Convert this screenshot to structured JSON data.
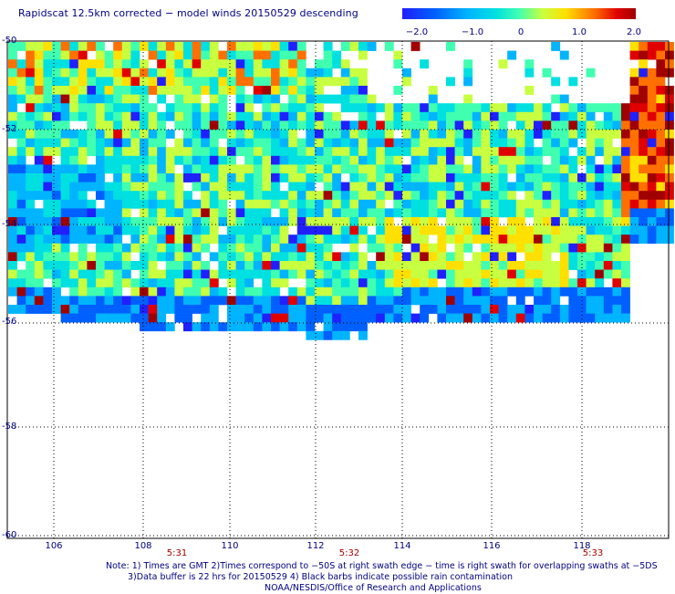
{
  "title": "Rapidscat 12.5km corrected − model winds 20150529 descending",
  "colorbar": {
    "ticks": [
      "−2.0",
      "−1.0",
      "0",
      "1.0",
      "2.0"
    ],
    "tick_values": [
      -2.0,
      -1.0,
      0.0,
      1.0,
      2.0
    ],
    "colors": [
      "#2020ff",
      "#0060ff",
      "#00b4ff",
      "#00e0e0",
      "#40ffb0",
      "#c8ff40",
      "#ffe000",
      "#ff7000",
      "#e00000",
      "#a00000"
    ]
  },
  "map": {
    "lat_labels": [
      "-50",
      "-52",
      "-54",
      "-56",
      "-58",
      "-60"
    ],
    "lat_values": [
      -50,
      -52,
      -54,
      -56,
      -58,
      -60
    ],
    "lon_labels": [
      "106",
      "108",
      "110",
      "112",
      "114",
      "116",
      "118"
    ],
    "lon_values": [
      106,
      108,
      110,
      112,
      114,
      116,
      118
    ],
    "time_labels": [
      "5:31",
      "5:32",
      "5:33"
    ],
    "time_lon": [
      108.7,
      112.7,
      118.3
    ],
    "lon_range": [
      105.1,
      119.8
    ],
    "lat_range": [
      -50,
      -60
    ]
  },
  "notes": {
    "line1": "Note: 1) Times are GMT 2)Times correspond to −50S at right swath edge − time is right swath for overlapping swaths at −5DS",
    "line2": "3)Data buffer is 22 hrs for 20150529 4) Black barbs indicate possible rain contamination",
    "line3": "NOAA/NESDIS/Office of Research and Applications"
  }
}
